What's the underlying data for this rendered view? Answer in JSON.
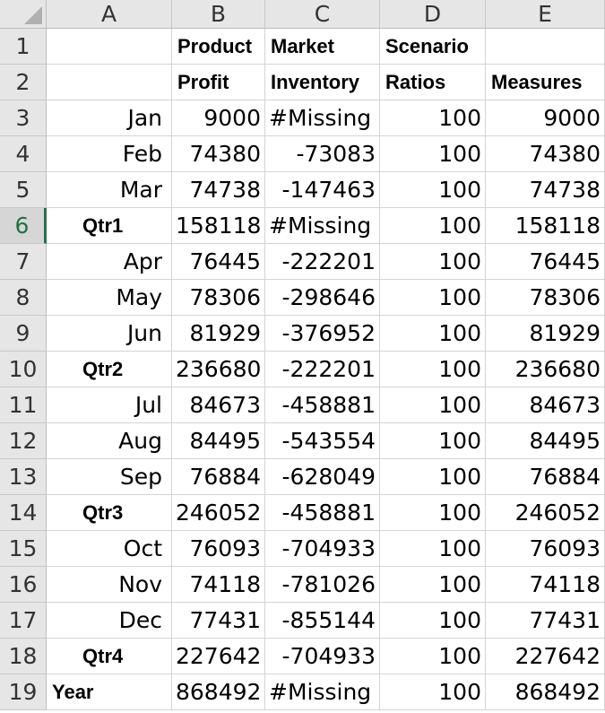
{
  "columns": [
    "A",
    "B",
    "C",
    "D",
    "E"
  ],
  "row_numbers": [
    "1",
    "2",
    "3",
    "4",
    "5",
    "6",
    "7",
    "8",
    "9",
    "10",
    "11",
    "12",
    "13",
    "14",
    "15",
    "16",
    "17",
    "18",
    "19"
  ],
  "active_row": "6",
  "header_rows": [
    [
      "",
      "Product",
      "Market",
      "Scenario",
      ""
    ],
    [
      "",
      "Profit",
      "Inventory",
      "Ratios",
      "Measures"
    ]
  ],
  "data_rows": [
    {
      "label": "Jan",
      "kind": "month",
      "b": "9000",
      "c": "#Missing",
      "d": "100",
      "e": "9000"
    },
    {
      "label": "Feb",
      "kind": "month",
      "b": "74380",
      "c": "-73083",
      "d": "100",
      "e": "74380"
    },
    {
      "label": "Mar",
      "kind": "month",
      "b": "74738",
      "c": "-147463",
      "d": "100",
      "e": "74738"
    },
    {
      "label": "Qtr1",
      "kind": "qtr",
      "b": "158118",
      "c": "#Missing",
      "d": "100",
      "e": "158118"
    },
    {
      "label": "Apr",
      "kind": "month",
      "b": "76445",
      "c": "-222201",
      "d": "100",
      "e": "76445"
    },
    {
      "label": "May",
      "kind": "month",
      "b": "78306",
      "c": "-298646",
      "d": "100",
      "e": "78306"
    },
    {
      "label": "Jun",
      "kind": "month",
      "b": "81929",
      "c": "-376952",
      "d": "100",
      "e": "81929"
    },
    {
      "label": "Qtr2",
      "kind": "qtr",
      "b": "236680",
      "c": "-222201",
      "d": "100",
      "e": "236680"
    },
    {
      "label": "Jul",
      "kind": "month",
      "b": "84673",
      "c": "-458881",
      "d": "100",
      "e": "84673"
    },
    {
      "label": "Aug",
      "kind": "month",
      "b": "84495",
      "c": "-543554",
      "d": "100",
      "e": "84495"
    },
    {
      "label": "Sep",
      "kind": "month",
      "b": "76884",
      "c": "-628049",
      "d": "100",
      "e": "76884"
    },
    {
      "label": "Qtr3",
      "kind": "qtr",
      "b": "246052",
      "c": "-458881",
      "d": "100",
      "e": "246052"
    },
    {
      "label": "Oct",
      "kind": "month",
      "b": "76093",
      "c": "-704933",
      "d": "100",
      "e": "76093"
    },
    {
      "label": "Nov",
      "kind": "month",
      "b": "74118",
      "c": "-781026",
      "d": "100",
      "e": "74118"
    },
    {
      "label": "Dec",
      "kind": "month",
      "b": "77431",
      "c": "-855144",
      "d": "100",
      "e": "77431"
    },
    {
      "label": "Qtr4",
      "kind": "qtr",
      "b": "227642",
      "c": "-704933",
      "d": "100",
      "e": "227642"
    },
    {
      "label": "Year",
      "kind": "year",
      "b": "868492",
      "c": "#Missing",
      "d": "100",
      "e": "868492"
    }
  ],
  "colors": {
    "active_row_accent": "#217346",
    "header_bg": "#e6e6e6",
    "gridline": "#d4d4d4"
  }
}
